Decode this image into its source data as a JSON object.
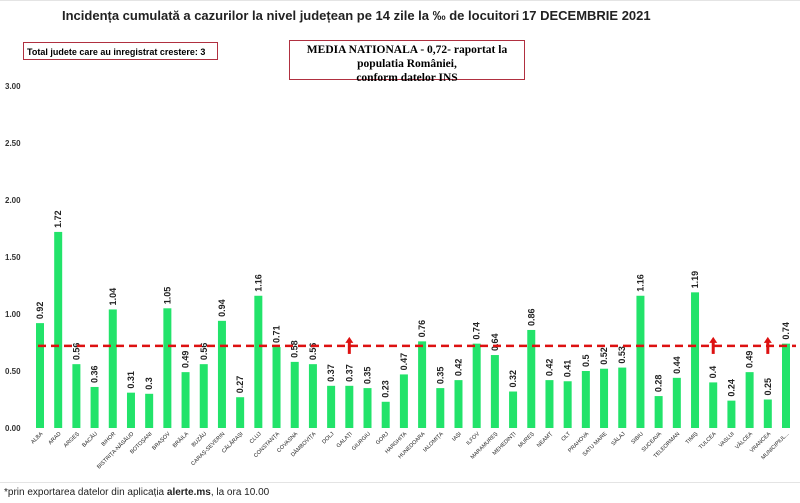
{
  "chart_data": {
    "type": "bar",
    "title": "Incidența cumulată a cazurilor la nivel județean pe 14 zile la ‰ de locuitori",
    "date": "17 DECEMBRIE 2021",
    "categories": [
      "ALBA",
      "ARAD",
      "ARGEȘ",
      "BACĂU",
      "BIHOR",
      "BISTRIȚA-NĂSĂUD",
      "BOTOȘANI",
      "BRAȘOV",
      "BRĂILA",
      "BUZĂU",
      "CARAȘ-SEVERIN",
      "CĂLĂRAȘI",
      "CLUJ",
      "CONSTANȚA",
      "COVASNA",
      "DÂMBOVIȚA",
      "DOLJ",
      "GALAȚI",
      "GIURGIU",
      "GORJ",
      "HARGHITA",
      "HUNEDOARA",
      "IALOMIȚA",
      "IAȘI",
      "ILFOV",
      "MARAMUREȘ",
      "MEHEDINȚI",
      "MUREȘ",
      "NEAMȚ",
      "OLT",
      "PRAHOVA",
      "SATU MARE",
      "SĂLAJ",
      "SIBIU",
      "SUCEAVA",
      "TELEORMAN",
      "TIMIȘ",
      "TULCEA",
      "VASLUI",
      "VÂLCEA",
      "VRANCEA",
      "MUNICIPIUL..."
    ],
    "values": [
      0.92,
      1.72,
      0.56,
      0.36,
      1.04,
      0.31,
      0.3,
      1.05,
      0.49,
      0.56,
      0.94,
      0.27,
      1.16,
      0.71,
      0.58,
      0.56,
      0.37,
      0.37,
      0.35,
      0.23,
      0.47,
      0.76,
      0.35,
      0.42,
      0.74,
      0.64,
      0.32,
      0.86,
      0.42,
      0.41,
      0.5,
      0.52,
      0.53,
      1.16,
      0.28,
      0.44,
      1.19,
      0.4,
      0.24,
      0.49,
      0.25,
      0.74
    ],
    "data_labels": [
      "0.92",
      "1.72",
      "0.56",
      "0.36",
      "1.04",
      "0.31",
      "0.3",
      "1.05",
      "0.49",
      "0.56",
      "0.94",
      "0.27",
      "1.16",
      "0.71",
      "0.58",
      "0.56",
      "0.37",
      "0.37",
      "0.35",
      "0.23",
      "0.47",
      "0.76",
      "0.35",
      "0.42",
      "0.74",
      "0.64",
      "0.32",
      "0.86",
      "0.42",
      "0.41",
      "0.5",
      "0.52",
      "0.53",
      "1.16",
      "0.28",
      "0.44",
      "1.19",
      "0.4",
      "0.24",
      "0.49",
      "0.25",
      "0.74"
    ],
    "increase_arrows": [
      "GALAȚI",
      "TULCEA",
      "VRANCEA"
    ],
    "reference_line": {
      "value": 0.72,
      "color": "#dd1111",
      "style": "dashed"
    },
    "ylim": [
      0,
      3
    ],
    "yticks": [
      "0.00",
      "0.50",
      "1.00",
      "1.50",
      "2.00",
      "2.50",
      "3.00"
    ],
    "bar_color": "#22e36a",
    "grid": false
  },
  "boxes": {
    "total": "Total judete care au inregistrat crestere: 3",
    "media_line1": "MEDIA NATIONALA - 0,72-  raportat la populatia României,",
    "media_line2": "conform datelor INS"
  },
  "footer": {
    "prefix": "*prin exportarea datelor din aplicația ",
    "bold": "alerte.ms",
    "suffix": ", la ora 10.00"
  }
}
